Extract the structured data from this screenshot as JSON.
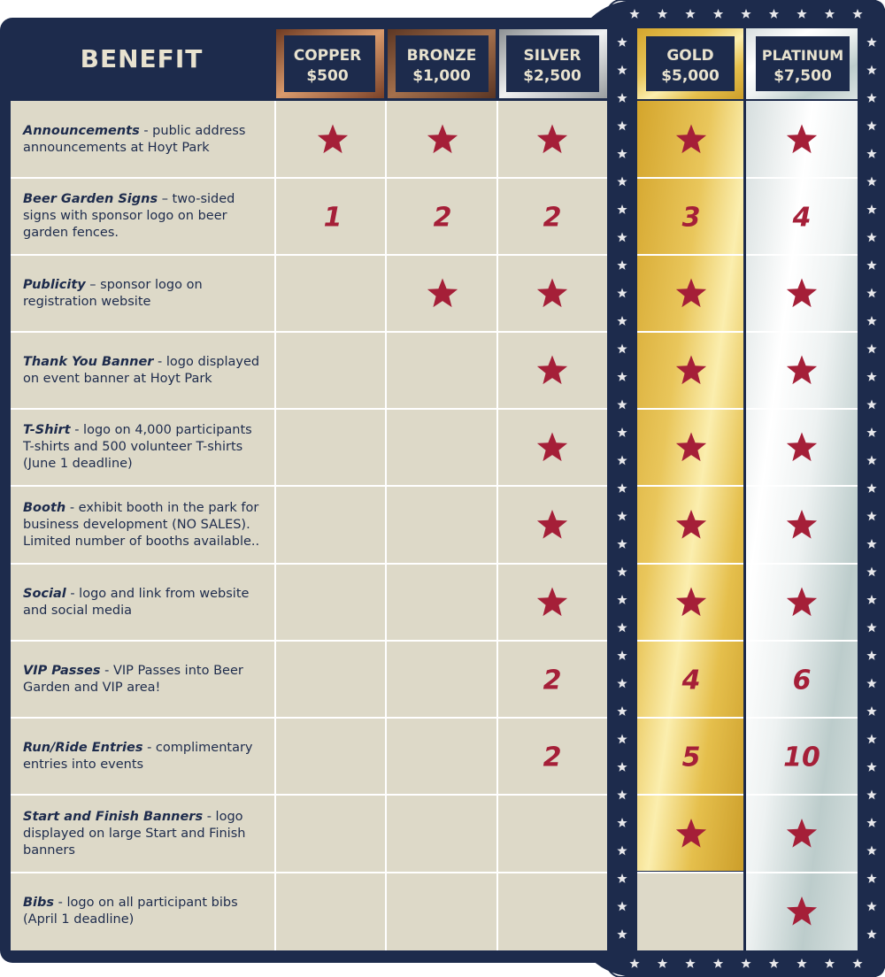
{
  "header": {
    "benefit_label": "BENEFIT"
  },
  "tiers": [
    {
      "name": "COPPER",
      "price": "$500",
      "accent": "#b66f45"
    },
    {
      "name": "BRONZE",
      "price": "$1,000",
      "accent": "#8b5a3c"
    },
    {
      "name": "SILVER",
      "price": "$2,500",
      "accent": "#cfd2d4"
    },
    {
      "name": "GOLD",
      "price": "$5,000",
      "accent": "#e6c34f"
    },
    {
      "name": "PLATINUM",
      "price": "$7,500",
      "accent": "#e9eeee"
    }
  ],
  "benefits": [
    {
      "title": "Announcements",
      "desc": " - public address announcements at Hoyt Park",
      "values": [
        "star",
        "star",
        "star",
        "star",
        "star"
      ]
    },
    {
      "title": "Beer Garden Signs",
      "desc": " – two-sided signs with sponsor logo on beer garden fences.",
      "values": [
        "1",
        "2",
        "2",
        "3",
        "4"
      ]
    },
    {
      "title": "Publicity",
      "desc": " – sponsor logo on registration website",
      "values": [
        "",
        "star",
        "star",
        "star",
        "star"
      ]
    },
    {
      "title": "Thank You Banner",
      "desc": " - logo displayed on event banner at Hoyt Park",
      "values": [
        "",
        "",
        "star",
        "star",
        "star"
      ]
    },
    {
      "title": "T-Shirt",
      "desc": " - logo on 4,000 participants T-shirts and 500 volunteer T-shirts (June 1 deadline)",
      "values": [
        "",
        "",
        "star",
        "star",
        "star"
      ]
    },
    {
      "title": "Booth",
      "desc": " - exhibit booth in the park for business development (NO SALES). Limited number of booths available..",
      "values": [
        "",
        "",
        "star",
        "star",
        "star"
      ]
    },
    {
      "title": "Social",
      "desc": " - logo and link from website and social media",
      "values": [
        "",
        "",
        "star",
        "star",
        "star"
      ]
    },
    {
      "title": "VIP Passes",
      "desc": " - VIP Passes into Beer Garden and VIP area!",
      "values": [
        "",
        "",
        "2",
        "4",
        "6"
      ]
    },
    {
      "title": "Run/Ride Entries",
      "desc": " - complimentary entries into events",
      "values": [
        "",
        "",
        "2",
        "5",
        "10"
      ]
    },
    {
      "title": "Start and Finish Banners",
      "desc": " - logo displayed on large Start and Finish banners",
      "values": [
        "",
        "",
        "",
        "star",
        "star"
      ]
    },
    {
      "title": "Bibs",
      "desc": " - logo on all participant bibs (April 1 deadline)",
      "values": [
        "",
        "",
        "",
        "",
        "star"
      ]
    }
  ],
  "colors": {
    "navy": "#1d2b4c",
    "cell": "#ddd9c8",
    "star_red": "#a51f38",
    "header_text": "#e8e2cf",
    "gold_light": "#f3df86",
    "gold_dark": "#d9b23a",
    "platinum_light": "#ffffff",
    "platinum_dark": "#b8c9c9"
  }
}
